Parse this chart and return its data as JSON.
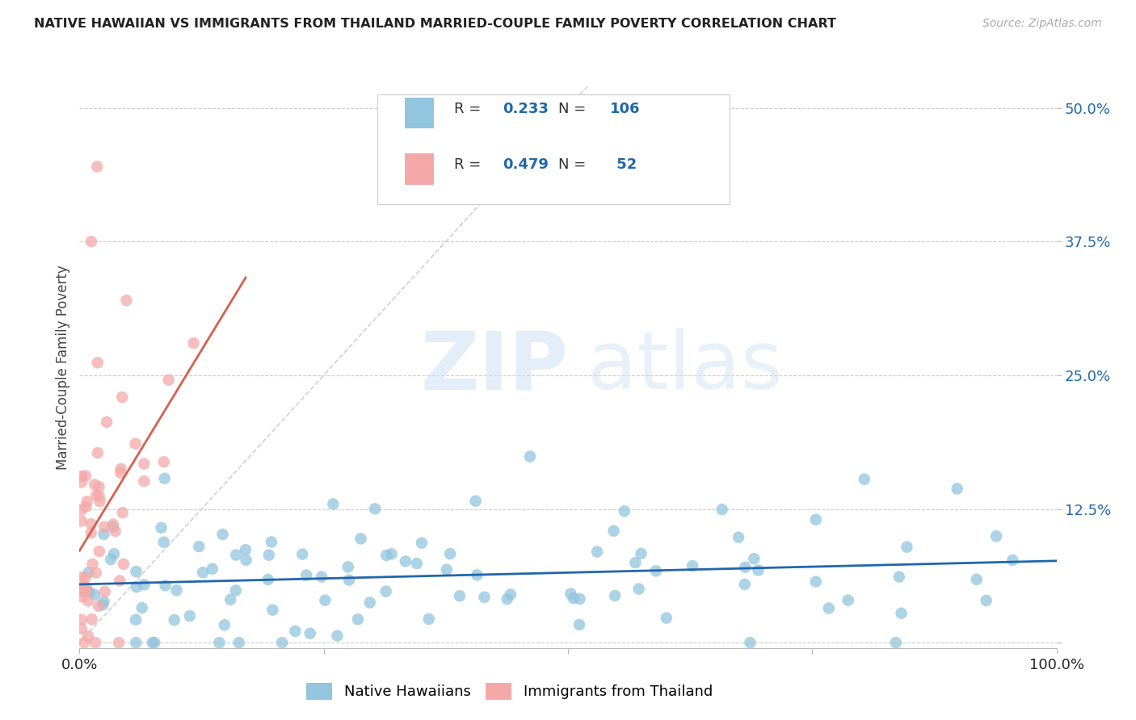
{
  "title": "NATIVE HAWAIIAN VS IMMIGRANTS FROM THAILAND MARRIED-COUPLE FAMILY POVERTY CORRELATION CHART",
  "source": "Source: ZipAtlas.com",
  "ylabel": "Married-Couple Family Poverty",
  "blue_color": "#92c5de",
  "pink_color": "#f4a9a8",
  "blue_line_color": "#2166ac",
  "pink_line_color": "#d6604d",
  "legend_blue_R": "0.233",
  "legend_blue_N": "106",
  "legend_pink_R": "0.479",
  "legend_pink_N": "52",
  "background_color": "#ffffff",
  "grid_color": "#cccccc",
  "watermark_zip_color": "#cce0f5",
  "watermark_atlas_color": "#cce0f5",
  "title_color": "#222222",
  "source_color": "#aaaaaa",
  "ytick_color": "#2166ac",
  "xlabel_color": "#222222"
}
